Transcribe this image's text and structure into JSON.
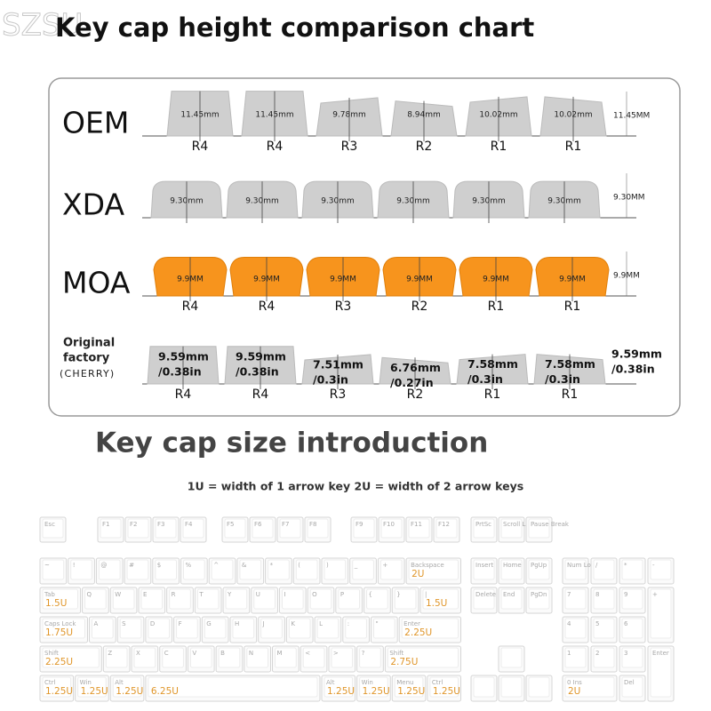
{
  "watermark": "SZSU",
  "title": "Key cap height comparison chart",
  "profiles": [
    {
      "name": "OEM",
      "heights": [
        {
          "value": 11.45,
          "label": "11.45mm"
        },
        {
          "value": 11.45,
          "label": "11.45mm"
        },
        {
          "value": 9.78,
          "label": "9.78mm"
        },
        {
          "value": 8.94,
          "label": "8.94mm"
        },
        {
          "value": 10.02,
          "label": "10.02mm"
        },
        {
          "value": 10.02,
          "label": "10.02mm"
        }
      ],
      "rows": [
        "R4",
        "R4",
        "R3",
        "R2",
        "R1",
        "R1"
      ],
      "total": "11.45MM"
    },
    {
      "name": "XDA",
      "heights": [
        {
          "value": 9.3,
          "label": "9.30mm"
        },
        {
          "value": 9.3,
          "label": "9.30mm"
        },
        {
          "value": 9.3,
          "label": "9.30mm"
        },
        {
          "value": 9.3,
          "label": "9.30mm"
        },
        {
          "value": 9.3,
          "label": "9.30mm"
        },
        {
          "value": 9.3,
          "label": "9.30mm"
        }
      ],
      "total": "9.30MM"
    },
    {
      "name": "MOA",
      "heights": [
        {
          "value": 9.9,
          "label": "9.9MM"
        },
        {
          "value": 9.9,
          "label": "9.9MM"
        },
        {
          "value": 9.9,
          "label": "9.9MM"
        },
        {
          "value": 9.9,
          "label": "9.9MM"
        },
        {
          "value": 9.9,
          "label": "9.9MM"
        },
        {
          "value": 9.9,
          "label": "9.9MM"
        }
      ],
      "rows": [
        "R4",
        "R4",
        "R3",
        "R2",
        "R1",
        "R1"
      ],
      "total": "9.9MM"
    },
    {
      "name_lines": [
        "Original",
        "factory"
      ],
      "brand": "(CHERRY)",
      "heights": [
        {
          "value": 9.59,
          "label": "9.59mm",
          "inch": "/0.38in"
        },
        {
          "value": 9.59,
          "label": "9.59mm",
          "inch": "/0.38in"
        },
        {
          "value": 7.51,
          "label": "7.51mm",
          "inch": "/0.3in"
        },
        {
          "value": 6.76,
          "label": "6.76mm",
          "inch": "/0.27in"
        },
        {
          "value": 7.58,
          "label": "7.58mm",
          "inch": "/0.3in"
        },
        {
          "value": 7.58,
          "label": "7.58mm",
          "inch": "/0.3in"
        }
      ],
      "rows": [
        "R4",
        "R4",
        "R3",
        "R2",
        "R1",
        "R1"
      ],
      "total": "9.59mm",
      "total_inch": "/0.38in"
    }
  ],
  "size_title": "Key cap size introduction",
  "size_note": "1U = width of 1 arrow key 2U = width of 2 arrow keys",
  "keyboard": {
    "function_row": [
      "Esc",
      "F1",
      "F2",
      "F3",
      "F4",
      "F5",
      "F6",
      "F7",
      "F8",
      "F9",
      "F10",
      "F11",
      "F12",
      "PrtSc",
      "Scroll Lock",
      "Pause Break"
    ],
    "rows": [
      [
        {
          "legend": "~"
        },
        {
          "legend": "!"
        },
        {
          "legend": "@"
        },
        {
          "legend": "#"
        },
        {
          "legend": "$"
        },
        {
          "legend": "%"
        },
        {
          "legend": "^"
        },
        {
          "legend": "&"
        },
        {
          "legend": "*"
        },
        {
          "legend": "("
        },
        {
          "legend": ")"
        },
        {
          "legend": "_"
        },
        {
          "legend": "+"
        },
        {
          "legend": "Backspace",
          "size": "2U"
        }
      ],
      [
        {
          "legend": "Tab",
          "size": "1.5U"
        },
        {
          "legend": "Q"
        },
        {
          "legend": "W"
        },
        {
          "legend": "E"
        },
        {
          "legend": "R"
        },
        {
          "legend": "T"
        },
        {
          "legend": "Y"
        },
        {
          "legend": "U"
        },
        {
          "legend": "I"
        },
        {
          "legend": "O"
        },
        {
          "legend": "P"
        },
        {
          "legend": "{"
        },
        {
          "legend": "}"
        },
        {
          "legend": "|",
          "size": "1.5U"
        }
      ],
      [
        {
          "legend": "Caps Lock",
          "size": "1.75U"
        },
        {
          "legend": "A"
        },
        {
          "legend": "S"
        },
        {
          "legend": "D"
        },
        {
          "legend": "F"
        },
        {
          "legend": "G"
        },
        {
          "legend": "H"
        },
        {
          "legend": "J"
        },
        {
          "legend": "K"
        },
        {
          "legend": "L"
        },
        {
          "legend": ":"
        },
        {
          "legend": "\""
        },
        {
          "legend": "Enter",
          "size": "2.25U"
        }
      ],
      [
        {
          "legend": "Shift",
          "size": "2.25U"
        },
        {
          "legend": "Z"
        },
        {
          "legend": "X"
        },
        {
          "legend": "C"
        },
        {
          "legend": "V"
        },
        {
          "legend": "B"
        },
        {
          "legend": "N"
        },
        {
          "legend": "M"
        },
        {
          "legend": "<"
        },
        {
          "legend": ">"
        },
        {
          "legend": "?"
        },
        {
          "legend": "Shift",
          "size": "2.75U"
        }
      ],
      [
        {
          "legend": "Ctrl",
          "size": "1.25U"
        },
        {
          "legend": "Win",
          "size": "1.25U"
        },
        {
          "legend": "Alt",
          "size": "1.25U"
        },
        {
          "size": "6.25U"
        },
        {
          "legend": "Alt",
          "size": "1.25U"
        },
        {
          "legend": "Win",
          "size": "1.25U"
        },
        {
          "legend": "Menu",
          "size": "1.25U"
        },
        {
          "legend": "Ctrl",
          "size": "1.25U"
        }
      ]
    ],
    "nav": [
      "Insert",
      "Home",
      "PgUp",
      "Delete",
      "End",
      "PgDn"
    ],
    "numpad": [
      {
        "legend": "Num Lock"
      },
      {
        "legend": "/"
      },
      {
        "legend": "*"
      },
      {
        "legend": "-"
      },
      {
        "legend": "7"
      },
      {
        "legend": "8"
      },
      {
        "legend": "9"
      },
      {
        "legend": "+"
      },
      {
        "legend": "4"
      },
      {
        "legend": "5"
      },
      {
        "legend": "6"
      },
      {
        "legend": "1"
      },
      {
        "legend": "2"
      },
      {
        "legend": "3"
      },
      {
        "legend": "Enter"
      },
      {
        "legend": "0 Ins",
        "size": "2U"
      },
      {
        "legend": "Del"
      }
    ]
  }
}
